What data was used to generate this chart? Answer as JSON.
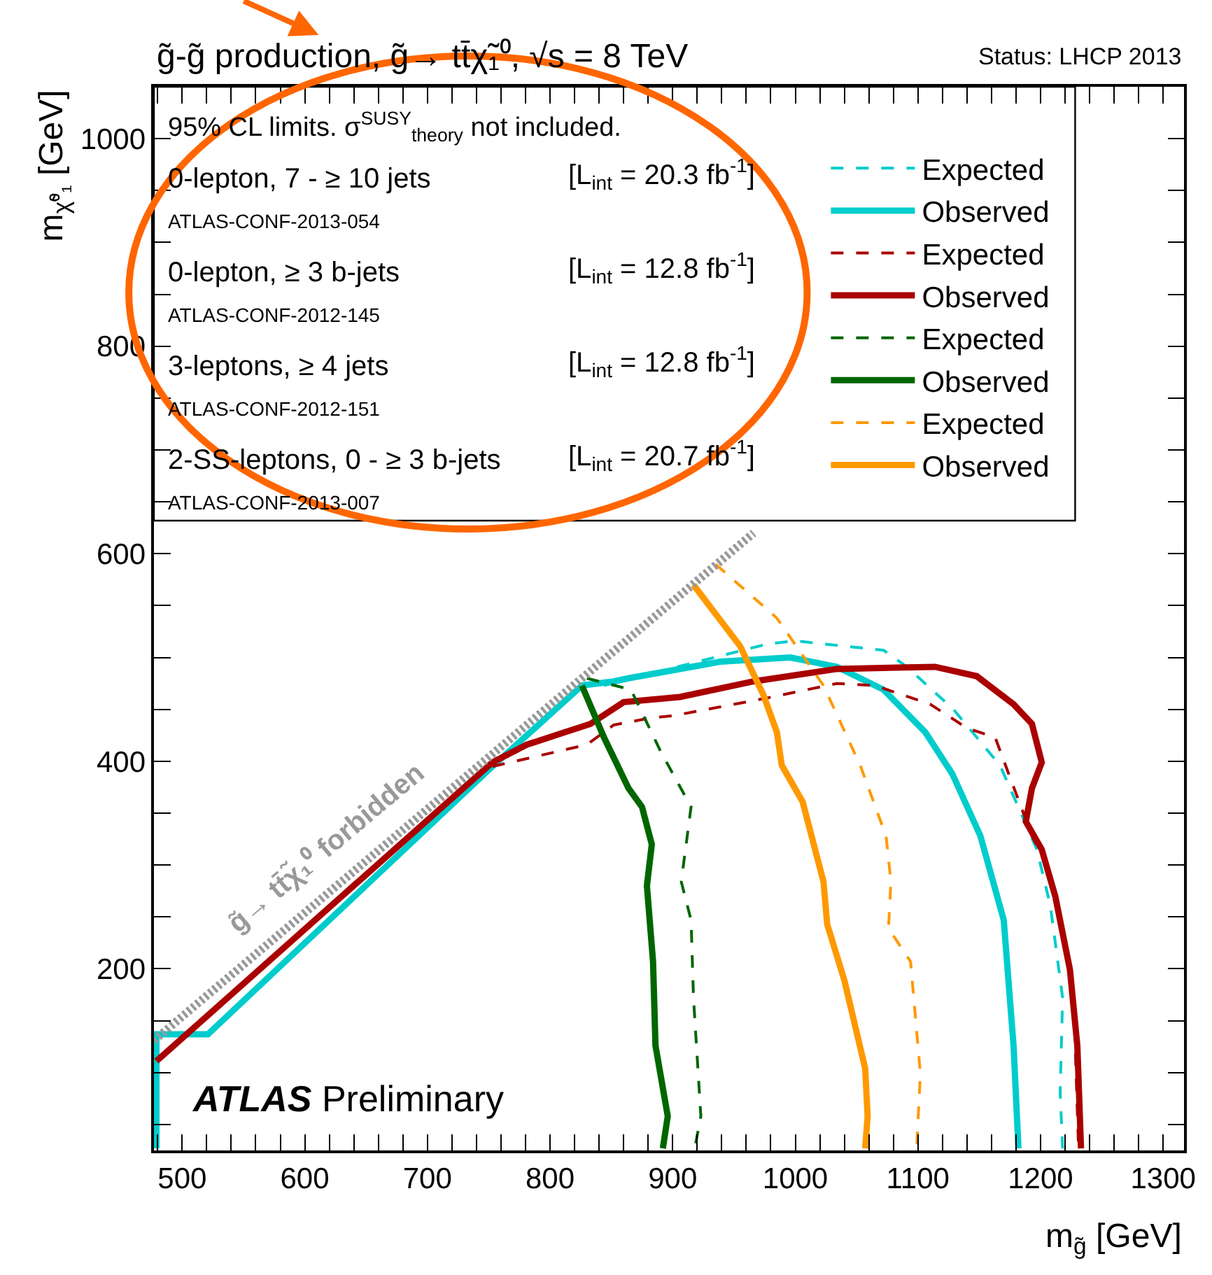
{
  "chart_data": {
    "type": "line",
    "title": "g̃-g̃ production, g̃→ tt̄χ̃₁⁰, √s = 8 TeV",
    "xlabel": "m$_{g̃}$ [GeV]",
    "ylabel": "m$_{χ̃⁰₁}$ [GeV]",
    "annotations": [
      "Status: LHCP 2013",
      "ATLAS Preliminary",
      "95% CL limits. σ$^{SUSY}$$_{theory}$ not included.",
      "0-lepton, 7 - ≥ 10 jets",
      "[L$_{int}$ = 20.3 fb$^{-1}$]",
      "ATLAS-CONF-2013-054",
      "0-lepton, ≥ 3 b-jets",
      "[L$_{int}$ = 12.8 fb$^{-1}$]",
      "ATLAS-CONF-2012-145",
      "3-leptons, ≥ 4 jets",
      "[L$_{int}$ = 12.8 fb$^{-1}$]",
      "ATLAS-CONF-2012-151",
      "2-SS-leptons, 0 - ≥ 3 b-jets",
      "[L$_{int}$ = 20.7 fb$^{-1}$]",
      "ATLAS-CONF-2013-007",
      {
        "text": "g̃→ tt̄χ̃₁⁰ forbidden",
        "x": 636,
        "y": 290
      }
    ],
    "xlim": [
      477,
      1317
    ],
    "ylim": [
      25,
      1050
    ],
    "xticks": [
      {
        "value": 480,
        "label": null
      },
      500,
      {
        "value": 520,
        "label": null
      },
      {
        "value": 540,
        "label": null
      },
      {
        "value": 560,
        "label": null
      },
      {
        "value": 580,
        "label": null
      },
      600,
      {
        "value": 620,
        "label": null
      },
      {
        "value": 640,
        "label": null
      },
      {
        "value": 660,
        "label": null
      },
      {
        "value": 680,
        "label": null
      },
      700,
      {
        "value": 720,
        "label": null
      },
      {
        "value": 740,
        "label": null
      },
      {
        "value": 760,
        "label": null
      },
      {
        "value": 780,
        "label": null
      },
      800,
      {
        "value": 820,
        "label": null
      },
      {
        "value": 840,
        "label": null
      },
      {
        "value": 860,
        "label": null
      },
      {
        "value": 880,
        "label": null
      },
      900,
      {
        "value": 920,
        "label": null
      },
      {
        "value": 940,
        "label": null
      },
      {
        "value": 960,
        "label": null
      },
      {
        "value": 980,
        "label": null
      },
      1000,
      {
        "value": 1020,
        "label": null
      },
      {
        "value": 1040,
        "label": null
      },
      {
        "value": 1060,
        "label": null
      },
      {
        "value": 1080,
        "label": null
      },
      1100,
      {
        "value": 1120,
        "label": null
      },
      {
        "value": 1140,
        "label": null
      },
      {
        "value": 1160,
        "label": null
      },
      {
        "value": 1180,
        "label": null
      },
      1200,
      {
        "value": 1220,
        "label": null
      },
      {
        "value": 1240,
        "label": null
      },
      {
        "value": 1260,
        "label": null
      },
      {
        "value": 1280,
        "label": null
      },
      1300
    ],
    "yticks": [
      {
        "value": 50,
        "label": null
      },
      {
        "value": 100,
        "label": null
      },
      {
        "value": 150,
        "label": null
      },
      200,
      {
        "value": 250,
        "label": null
      },
      {
        "value": 300,
        "label": null
      },
      {
        "value": 350,
        "label": null
      },
      400,
      {
        "value": 450,
        "label": null
      },
      {
        "value": 500,
        "label": null
      },
      {
        "value": 550,
        "label": null
      },
      600,
      {
        "value": 650,
        "label": null
      },
      {
        "value": 700,
        "label": null
      },
      {
        "value": 750,
        "label": null
      },
      800,
      {
        "value": 850,
        "label": null
      },
      {
        "value": 900,
        "label": null
      },
      {
        "value": 950,
        "label": null
      },
      1000
    ],
    "grid": false,
    "legend": "top",
    "series": [
      {
        "name": "Expected",
        "color": "#00cccc",
        "line_style": "dashed",
        "x": [
          844,
          977,
          1000,
          1072,
          1091,
          1129,
          1167,
          1197,
          1208,
          1218,
          1216,
          1218
        ],
        "values": [
          473,
          513,
          516,
          507,
          491,
          450,
          396,
          315,
          261,
          172,
          81,
          27
        ]
      },
      {
        "name": "Observed",
        "color": "#00cccc",
        "line_style": "solid",
        "x": [
          479,
          479,
          521,
          753,
          826,
          852,
          864,
          939,
          996,
          1034,
          1072,
          1106,
          1128,
          1151,
          1170,
          1178,
          1182
        ],
        "values": [
          27,
          137,
          137,
          395,
          473,
          477,
          480,
          496,
          500,
          491,
          469,
          428,
          388,
          328,
          247,
          126,
          27
        ]
      },
      {
        "name": "Expected",
        "color": "#aa0000",
        "line_style": "dashed",
        "x": [
          753,
          830,
          852,
          883,
          901,
          977,
          1034,
          1065,
          1110,
          1140,
          1163,
          1174,
          1193,
          1208,
          1219,
          1227,
          1231
        ],
        "values": [
          395,
          416,
          435,
          442,
          444,
          461,
          475,
          473,
          455,
          432,
          423,
          388,
          328,
          293,
          230,
          172,
          27
        ]
      },
      {
        "name": "Observed",
        "color": "#aa0000",
        "line_style": "solid",
        "x": [
          479,
          753,
          781,
          807,
          833,
          860,
          906,
          966,
          1034,
          1114,
          1148,
          1178,
          1193,
          1201,
          1193,
          1188,
          1201,
          1212,
          1224,
          1230,
          1233
        ],
        "values": [
          111,
          399,
          416,
          426,
          436,
          457,
          462,
          477,
          489,
          491,
          482,
          455,
          436,
          399,
          374,
          342,
          315,
          270,
          199,
          126,
          27
        ]
      },
      {
        "name": "Expected",
        "color": "#006600",
        "line_style": "dashed",
        "x": [
          830,
          866,
          890,
          915,
          907,
          915,
          917,
          923,
          918
        ],
        "values": [
          480,
          469,
          410,
          356,
          284,
          247,
          172,
          58,
          27
        ]
      },
      {
        "name": "Observed",
        "color": "#006600",
        "line_style": "solid",
        "x": [
          826,
          844,
          864,
          875,
          883,
          879,
          884,
          886,
          896,
          892
        ],
        "values": [
          473,
          423,
          374,
          356,
          320,
          280,
          207,
          126,
          58,
          27
        ]
      },
      {
        "name": "Expected",
        "color": "#ff9900",
        "line_style": "dashed",
        "x": [
          935,
          985,
          1023,
          1053,
          1074,
          1078,
          1076,
          1094,
          1102,
          1099
        ],
        "values": [
          590,
          538,
          473,
          396,
          328,
          284,
          239,
          207,
          99,
          27
        ]
      },
      {
        "name": "Observed",
        "color": "#ff9900",
        "line_style": "solid",
        "x": [
          917,
          955,
          974,
          985,
          989,
          1006,
          1023,
          1026,
          1040,
          1057,
          1059,
          1057
        ],
        "values": [
          570,
          511,
          464,
          428,
          396,
          361,
          284,
          243,
          189,
          104,
          58,
          27
        ]
      },
      {
        "color": "#999999",
        "line_style": "dotted",
        "x": [
          477,
          966
        ],
        "values": [
          131,
          620
        ]
      }
    ]
  }
}
